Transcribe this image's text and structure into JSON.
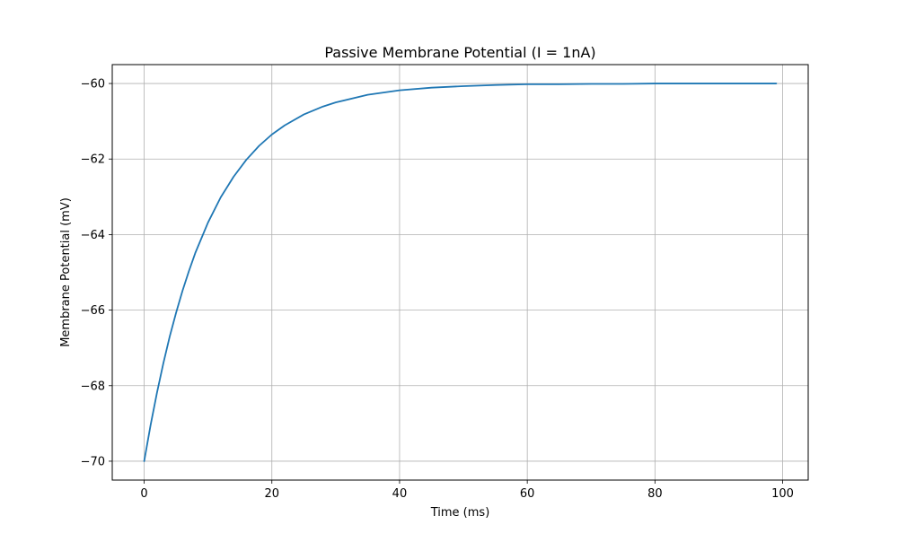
{
  "chart_data": {
    "type": "line",
    "title": "Passive Membrane Potential (I = 1nA)",
    "xlabel": "Time (ms)",
    "ylabel": "Membrane Potential (mV)",
    "xlim": [
      -5,
      104
    ],
    "ylim": [
      -70.5,
      -59.5
    ],
    "xticks": [
      0,
      20,
      40,
      60,
      80,
      100
    ],
    "yticks": [
      -70,
      -68,
      -66,
      -64,
      -62,
      -60
    ],
    "xtick_labels": [
      "0",
      "20",
      "40",
      "60",
      "80",
      "100"
    ],
    "ytick_labels": [
      "−70",
      "−68",
      "−66",
      "−64",
      "−62",
      "−60"
    ],
    "grid": true,
    "series": [
      {
        "color": "#1f77b4",
        "x": [
          0,
          1,
          2,
          3,
          4,
          5,
          6,
          7,
          8,
          10,
          12,
          14,
          16,
          18,
          20,
          22,
          25,
          28,
          30,
          35,
          40,
          45,
          50,
          55,
          60,
          65,
          70,
          75,
          80,
          85,
          90,
          95,
          99
        ],
        "y": [
          -70.0,
          -69.05,
          -68.19,
          -67.41,
          -66.7,
          -66.07,
          -65.49,
          -64.97,
          -64.49,
          -63.68,
          -63.01,
          -62.47,
          -62.02,
          -61.65,
          -61.35,
          -61.11,
          -60.82,
          -60.61,
          -60.5,
          -60.3,
          -60.18,
          -60.11,
          -60.07,
          -60.04,
          -60.02,
          -60.02,
          -60.01,
          -60.01,
          -60.0,
          -60.0,
          -60.0,
          -60.0,
          -60.0
        ]
      }
    ]
  }
}
